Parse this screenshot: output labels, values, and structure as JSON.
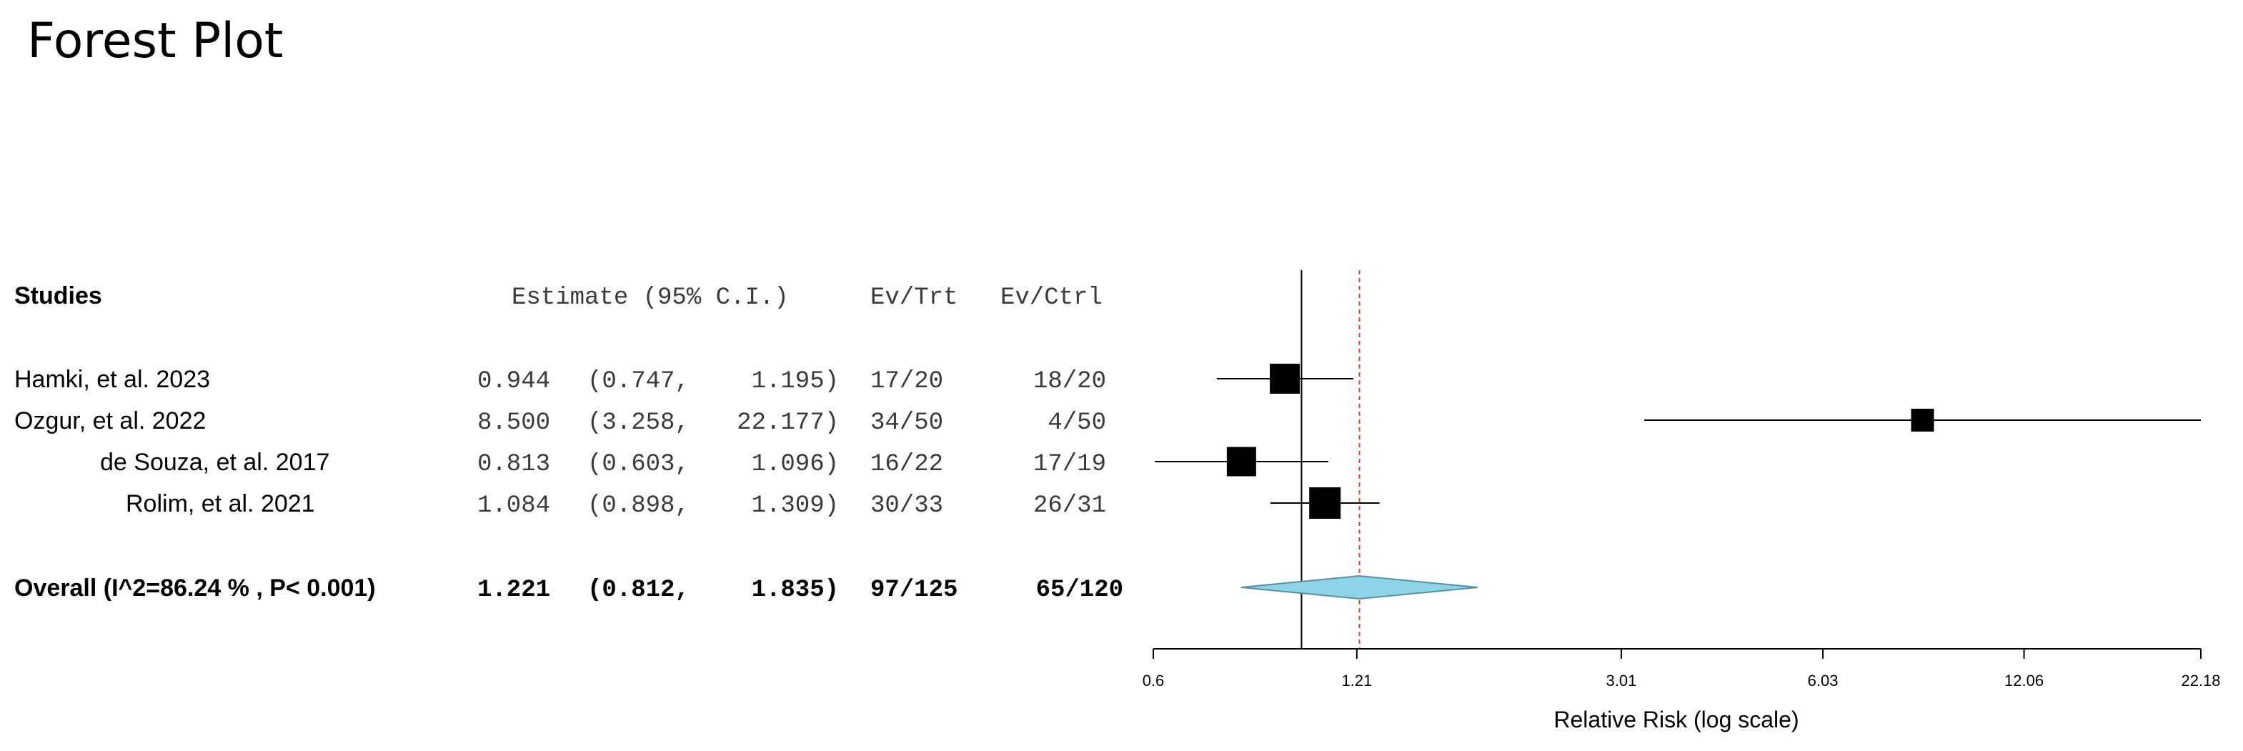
{
  "title": "Forest Plot",
  "headers": {
    "studies": "Studies",
    "estimate": "Estimate (95% C.I.)",
    "ev_trt": "Ev/Trt",
    "ev_ctrl": "Ev/Ctrl"
  },
  "studies": [
    {
      "name": "Hamki, et al. 2023",
      "estimate": "0.944",
      "ci_low": "(0.747,",
      "ci_high": "1.195)",
      "ev_trt": "17/20",
      "ev_ctrl": "18/20"
    },
    {
      "name": "Ozgur, et al. 2022",
      "estimate": "8.500",
      "ci_low": "(3.258,",
      "ci_high": "22.177)",
      "ev_trt": "34/50",
      "ev_ctrl": "4/50"
    },
    {
      "name": "de Souza, et al. 2017",
      "estimate": "0.813",
      "ci_low": "(0.603,",
      "ci_high": "1.096)",
      "ev_trt": "16/22",
      "ev_ctrl": "17/19"
    },
    {
      "name": "Rolim, et al. 2021",
      "estimate": "1.084",
      "ci_low": "(0.898,",
      "ci_high": "1.309)",
      "ev_trt": "30/33",
      "ev_ctrl": "26/31"
    }
  ],
  "overall": {
    "label": "Overall (I^2=86.24 % , P< 0.001)",
    "estimate": "1.221",
    "ci_low": "(0.812,",
    "ci_high": "1.835)",
    "ev_trt": "97/125",
    "ev_ctrl": "65/120"
  },
  "axis": {
    "ticks": [
      "0.6",
      "1.21",
      "3.01",
      "6.03",
      "12.06",
      "22.18"
    ],
    "label": "Relative Risk (log scale)"
  },
  "colors": {
    "diamond_fill": "#8fd3e8",
    "null_line": "#e04040",
    "marker": "#000000"
  },
  "chart_data": {
    "type": "forest",
    "scale": "log",
    "xlim": [
      0.6,
      22.18
    ],
    "null_value": 1,
    "overall_line": 1.221,
    "points": [
      {
        "study": "Hamki, et al. 2023",
        "estimate": 0.944,
        "lower": 0.747,
        "upper": 1.195,
        "weight": 1.0
      },
      {
        "study": "Ozgur, et al. 2022",
        "estimate": 8.5,
        "lower": 3.258,
        "upper": 22.177,
        "weight": 0.5
      },
      {
        "study": "de Souza, et al. 2017",
        "estimate": 0.813,
        "lower": 0.603,
        "upper": 1.096,
        "weight": 0.95
      },
      {
        "study": "Rolim, et al. 2021",
        "estimate": 1.084,
        "lower": 0.898,
        "upper": 1.309,
        "weight": 1.1
      }
    ],
    "overall": {
      "estimate": 1.221,
      "lower": 0.812,
      "upper": 1.835
    },
    "xticks": [
      0.6,
      1.21,
      3.01,
      6.03,
      12.06,
      22.18
    ],
    "xlabel": "Relative Risk (log scale)"
  }
}
